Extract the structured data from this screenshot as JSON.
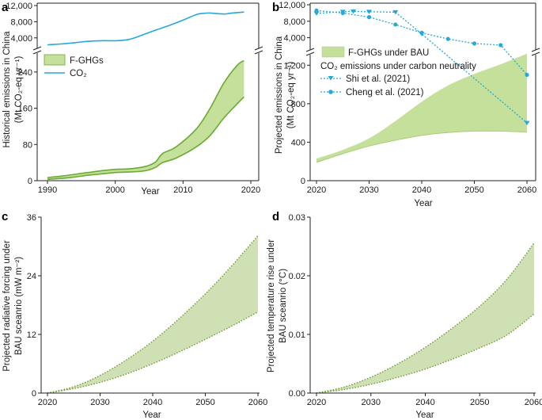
{
  "colors": {
    "fgas_fill": "#c5e09a",
    "fgas_line": "#6aab32",
    "fgas_fill_cd": "#cfe1b4",
    "fgas_dot_cd": "#6f9a2e",
    "co2": "#26a8d8",
    "axis": "#222222"
  },
  "chart_data": [
    {
      "panel": "a",
      "type": "area",
      "xlabel": "Year",
      "ylabel": "Historical emissions in China",
      "ylabel2": "(Mt CO₂-eq yr⁻¹)",
      "x_ticks": [
        1990,
        2000,
        2010,
        2020
      ],
      "y_ticks_upper": [
        "4,000",
        "8,000",
        "12,000"
      ],
      "y_ticks_lower": [
        "0",
        "80",
        "160",
        "240"
      ],
      "ylim_upper": [
        2000,
        12000
      ],
      "ylim_lower": [
        0,
        280
      ],
      "legend": [
        "F-GHGs",
        "CO₂"
      ],
      "series": [
        {
          "name": "CO2",
          "x": [
            1990,
            1992,
            1994,
            1996,
            1998,
            2000,
            2002,
            2004,
            2006,
            2008,
            2010,
            2012,
            2013,
            2014,
            2016,
            2017,
            2019
          ],
          "values": [
            2300,
            2500,
            2800,
            3150,
            3300,
            3300,
            3600,
            4700,
            5950,
            7100,
            8400,
            9800,
            10050,
            10150,
            9900,
            10100,
            10400
          ]
        },
        {
          "name": "F-GHGs upper",
          "x": [
            1990,
            1992,
            1994,
            1996,
            1998,
            2000,
            2002,
            2004,
            2005,
            2006,
            2007,
            2009,
            2012,
            2014,
            2016,
            2018,
            2019
          ],
          "values": [
            7,
            10,
            14,
            18,
            22,
            25,
            26,
            30,
            34,
            42,
            60,
            75,
            115,
            160,
            215,
            255,
            265
          ]
        },
        {
          "name": "F-GHGs lower",
          "x": [
            1990,
            1992,
            1994,
            1996,
            1998,
            2000,
            2002,
            2004,
            2005,
            2006,
            2007,
            2009,
            2012,
            2014,
            2016,
            2018,
            2019
          ],
          "values": [
            3,
            5,
            8,
            12,
            15,
            18,
            19,
            21,
            24,
            30,
            40,
            50,
            75,
            100,
            138,
            170,
            185
          ]
        }
      ]
    },
    {
      "panel": "b",
      "type": "area",
      "xlabel": "Year",
      "ylabel": "Projected emissions in China",
      "ylabel2": "(Mt CO₂-eq yr⁻¹)",
      "x_ticks": [
        2020,
        2030,
        2040,
        2050,
        2060
      ],
      "y_ticks_upper": [
        "4,000",
        "8,000",
        "12,000"
      ],
      "y_ticks_lower": [
        "0",
        "400",
        "800",
        "1,200"
      ],
      "ylim_upper": [
        2000,
        12000
      ],
      "ylim_lower": [
        0,
        1400
      ],
      "legend_area": "F-GHGs under BAU",
      "legend_title": "CO₂ emissions under carbon neutrality",
      "legend": [
        "Shi et al. (2021)",
        "Cheng et al. (2021)"
      ],
      "series": [
        {
          "name": "F-GHGs under BAU upper",
          "x": [
            2020,
            2025,
            2030,
            2035,
            2040,
            2045,
            2050,
            2055,
            2060
          ],
          "values": [
            230,
            320,
            440,
            620,
            820,
            990,
            1110,
            1210,
            1320
          ]
        },
        {
          "name": "F-GHGs under BAU lower",
          "x": [
            2020,
            2025,
            2030,
            2035,
            2040,
            2045,
            2050,
            2055,
            2060
          ],
          "values": [
            190,
            280,
            360,
            420,
            470,
            500,
            515,
            515,
            505
          ]
        },
        {
          "name": "Shi et al. (2021)",
          "x": [
            2020,
            2025,
            2027,
            2030,
            2035,
            2040
          ],
          "values": [
            9900,
            10300,
            10400,
            10300,
            10200,
            4900
          ]
        },
        {
          "name": "Cheng et al. (2021)",
          "x": [
            2020,
            2025,
            2030,
            2035,
            2040,
            2045,
            2050,
            2055
          ],
          "values": [
            10600,
            10000,
            9000,
            7200,
            5200,
            3700,
            2600,
            2200
          ]
        },
        {
          "name": "Shi et al. (2021) lower-axis",
          "x": [
            2040,
            2060
          ],
          "values": [
            1460,
            600
          ]
        },
        {
          "name": "Cheng et al. (2021) lower-axis",
          "x": [
            2055,
            2060
          ],
          "values": [
            1500,
            1100
          ]
        }
      ]
    },
    {
      "panel": "c",
      "type": "area",
      "xlabel": "Year",
      "ylabel": "Projected radiative forcing under",
      "ylabel2": "BAU sceanrio (mW m⁻²)",
      "x_ticks": [
        2020,
        2030,
        2040,
        2050,
        2060
      ],
      "y_ticks": [
        "0",
        "12",
        "24",
        "36"
      ],
      "ylim": [
        0,
        36
      ],
      "series": [
        {
          "name": "upper",
          "x": [
            2020,
            2025,
            2030,
            2035,
            2040,
            2045,
            2050,
            2055,
            2060
          ],
          "values": [
            0,
            1.3,
            3.6,
            6.8,
            10.6,
            15.2,
            20.3,
            26.0,
            32.2
          ]
        },
        {
          "name": "lower",
          "x": [
            2020,
            2025,
            2030,
            2035,
            2040,
            2045,
            2050,
            2055,
            2060
          ],
          "values": [
            0,
            0.9,
            2.2,
            3.9,
            6.0,
            8.4,
            11.0,
            13.7,
            16.6
          ]
        }
      ]
    },
    {
      "panel": "d",
      "type": "area",
      "xlabel": "Year",
      "ylabel": "Projected temperature rise under",
      "ylabel2": "BAU sceanrio (°C)",
      "x_ticks": [
        2020,
        2030,
        2040,
        2050,
        2060
      ],
      "y_ticks": [
        "0.00",
        "0.01",
        "0.02",
        "0.03"
      ],
      "ylim": [
        0,
        0.03
      ],
      "series": [
        {
          "name": "upper",
          "x": [
            2020,
            2025,
            2030,
            2035,
            2040,
            2045,
            2050,
            2055,
            2060
          ],
          "values": [
            0,
            0.001,
            0.0027,
            0.005,
            0.0078,
            0.0111,
            0.0148,
            0.0194,
            0.0256
          ]
        },
        {
          "name": "lower",
          "x": [
            2020,
            2025,
            2030,
            2035,
            2040,
            2045,
            2050,
            2055,
            2060
          ],
          "values": [
            0,
            0.0006,
            0.0015,
            0.0027,
            0.0041,
            0.0058,
            0.0077,
            0.0099,
            0.0135
          ]
        }
      ]
    }
  ]
}
